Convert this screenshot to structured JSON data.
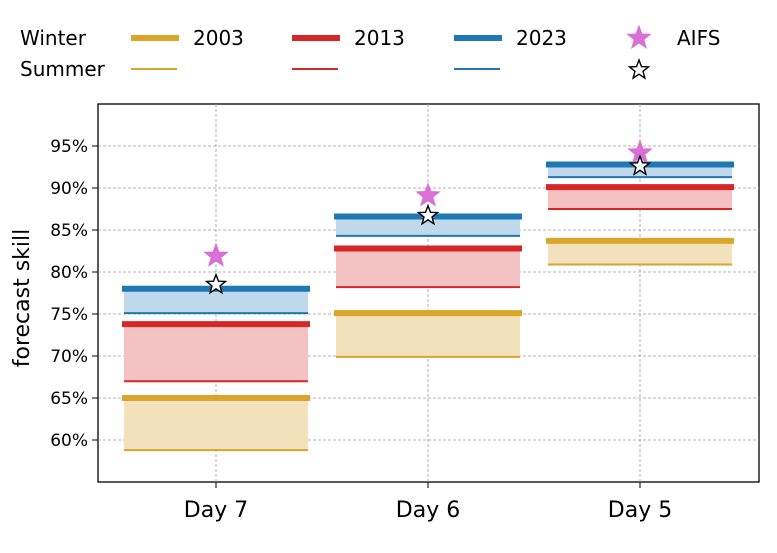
{
  "legend": {
    "row_labels": {
      "winter": "Winter",
      "summer": "Summer"
    },
    "years": [
      "2003",
      "2013",
      "2023"
    ],
    "aifs_label": "AIFS"
  },
  "chart_data": {
    "type": "range-bar",
    "ylabel": "forecast skill",
    "categories": [
      "Day 7",
      "Day 6",
      "Day 5"
    ],
    "ylim": [
      55,
      100
    ],
    "yticks": [
      "60%",
      "65%",
      "70%",
      "75%",
      "80%",
      "85%",
      "90%",
      "95%"
    ],
    "grid": true,
    "legend_placement": "top",
    "series": [
      {
        "name": "2003",
        "color": "#DAA52A",
        "fill": "#F3E1BE",
        "winter": [
          65,
          75.1,
          83.7
        ],
        "summer": [
          58.8,
          69.9,
          80.9
        ]
      },
      {
        "name": "2013",
        "color": "#D62728",
        "fill": "#F4C2C2",
        "winter": [
          73.8,
          82.8,
          90.1
        ],
        "summer": [
          67.0,
          78.2,
          87.5
        ]
      },
      {
        "name": "2023",
        "color": "#1F77B4",
        "fill": "#C0D8EC",
        "winter": [
          78.0,
          86.6,
          92.8
        ],
        "summer": [
          75.1,
          84.3,
          91.3
        ]
      }
    ],
    "aifs": {
      "name": "AIFS",
      "color": "#DA70D6",
      "winter": [
        81.9,
        89.1,
        94.2
      ],
      "summer": [
        78.5,
        86.7,
        92.6
      ]
    }
  }
}
